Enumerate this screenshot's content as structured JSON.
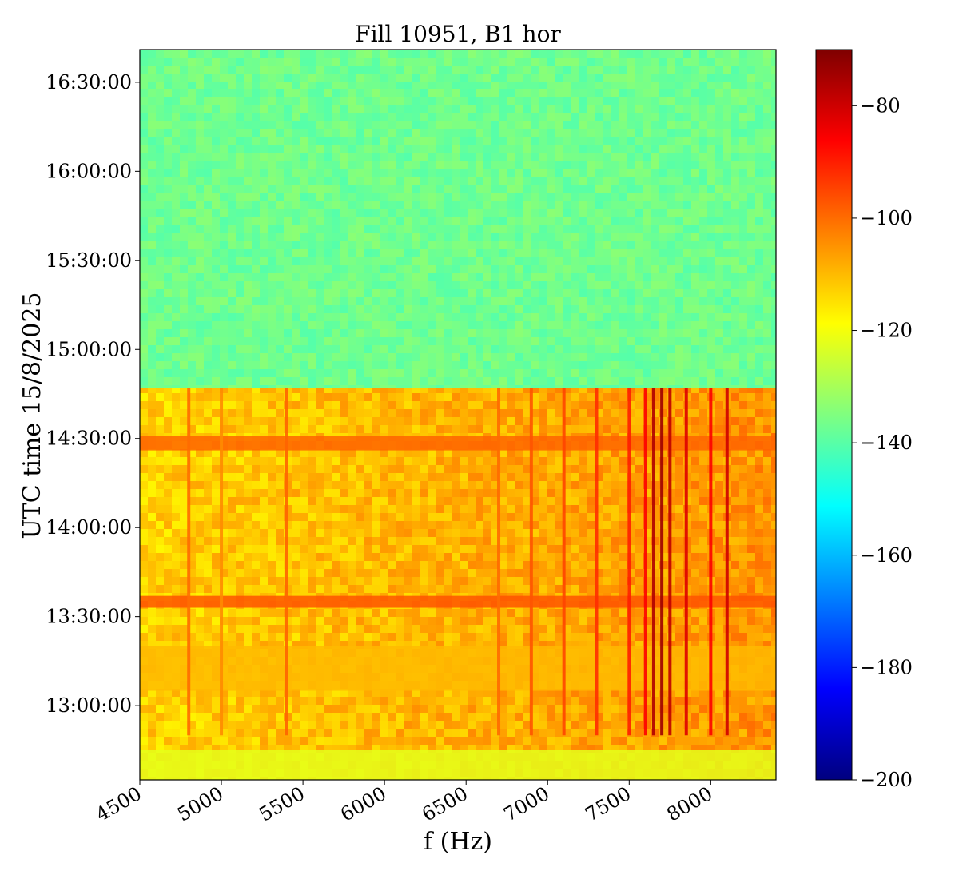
{
  "chart_data": {
    "type": "heatmap",
    "title": "Fill 10951, B1 hor",
    "xlabel": "f (Hz)",
    "ylabel": "UTC time 15/8/2025",
    "xlim": [
      4500,
      8400
    ],
    "ylim": [
      "12:35:00",
      "16:41:00"
    ],
    "x_ticks": [
      {
        "value": 4500,
        "label": "4500"
      },
      {
        "value": 5000,
        "label": "5000"
      },
      {
        "value": 5500,
        "label": "5500"
      },
      {
        "value": 6000,
        "label": "6000"
      },
      {
        "value": 6500,
        "label": "6500"
      },
      {
        "value": 7000,
        "label": "7000"
      },
      {
        "value": 7500,
        "label": "7500"
      },
      {
        "value": 8000,
        "label": "8000"
      }
    ],
    "y_ticks": [
      {
        "value": "13:00:00",
        "label": "13:00:00"
      },
      {
        "value": "13:30:00",
        "label": "13:30:00"
      },
      {
        "value": "14:00:00",
        "label": "14:00:00"
      },
      {
        "value": "14:30:00",
        "label": "14:30:00"
      },
      {
        "value": "15:00:00",
        "label": "15:00:00"
      },
      {
        "value": "15:30:00",
        "label": "15:30:00"
      },
      {
        "value": "16:00:00",
        "label": "16:00:00"
      },
      {
        "value": "16:30:00",
        "label": "16:30:00"
      }
    ],
    "colorbar": {
      "colormap": "jet",
      "range": [
        -200,
        -70
      ],
      "ticks": [
        {
          "value": -80,
          "label": "−80"
        },
        {
          "value": -100,
          "label": "−100"
        },
        {
          "value": -120,
          "label": "−120"
        },
        {
          "value": -140,
          "label": "−140"
        },
        {
          "value": -160,
          "label": "−160"
        },
        {
          "value": -180,
          "label": "−180"
        },
        {
          "value": -200,
          "label": "−200"
        }
      ]
    },
    "regions": [
      {
        "time_range": [
          "14:47:00",
          "16:41:00"
        ],
        "level": -137
      },
      {
        "time_range": [
          "14:26:00",
          "14:31:00"
        ],
        "level": -99
      },
      {
        "time_range": [
          "13:33:00",
          "13:37:00"
        ],
        "level": -97
      },
      {
        "time_range": [
          "13:05:00",
          "13:20:00"
        ],
        "level": -110
      },
      {
        "time_range": [
          "12:35:00",
          "12:45:00"
        ],
        "level": -122
      }
    ],
    "lines": [
      {
        "f": 4800,
        "level": -100
      },
      {
        "f": 5000,
        "level": -104
      },
      {
        "f": 5400,
        "level": -99
      },
      {
        "f": 6700,
        "level": -100
      },
      {
        "f": 6900,
        "level": -97
      },
      {
        "f": 7100,
        "level": -95
      },
      {
        "f": 7300,
        "level": -92
      },
      {
        "f": 7500,
        "level": -90
      },
      {
        "f": 7600,
        "level": -86
      },
      {
        "f": 7650,
        "level": -76
      },
      {
        "f": 7700,
        "level": -74
      },
      {
        "f": 7750,
        "level": -78
      },
      {
        "f": 7850,
        "level": -82
      },
      {
        "f": 8000,
        "level": -86
      },
      {
        "f": 8100,
        "level": -80
      }
    ]
  }
}
